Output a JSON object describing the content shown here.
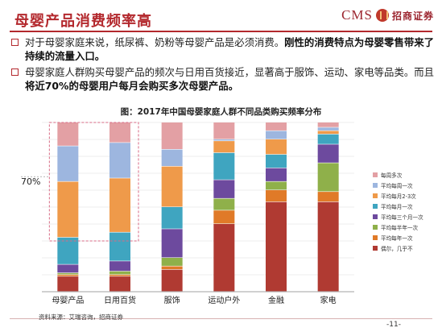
{
  "header": {
    "title": "母婴产品消费频率高",
    "logo_cms": "CMS",
    "logo_cn": "招商证券"
  },
  "bullets": [
    {
      "text": "对于母婴家庭来说，纸尿裤、奶粉等母婴产品是必须消费。",
      "bold": "刚性的消费特点为母婴零售带来了持续的流量入口。"
    },
    {
      "text": "母婴家庭人群购买母婴产品的频次与日用百货接近，显著高于服饰、运动、家电等品类。而且",
      "bold": "将近70%的母婴用户每月会购买多次母婴产品。"
    }
  ],
  "chart_data": {
    "type": "bar",
    "stacked": true,
    "title": "图：2017年中国母婴家庭人群不同品类购买频率分布",
    "categories": [
      "母婴产品",
      "日用百货",
      "服饰",
      "运动户外",
      "金融",
      "家电"
    ],
    "annotation": "70%",
    "ylim": [
      0,
      100
    ],
    "legend_position": "right",
    "series": [
      {
        "name": "偶尔，几乎不",
        "color": "#b03a32",
        "values": [
          9,
          9,
          13,
          40,
          53,
          53
        ]
      },
      {
        "name": "平均每年一次",
        "color": "#e07a28",
        "values": [
          1,
          1,
          2,
          8,
          7,
          6
        ]
      },
      {
        "name": "平均每半年一次",
        "color": "#8fb04a",
        "values": [
          1,
          2,
          5,
          7,
          5,
          17
        ]
      },
      {
        "name": "平均每三个月一次",
        "color": "#6d4a9e",
        "values": [
          5,
          6,
          17,
          11,
          8,
          11
        ]
      },
      {
        "name": "平均每月一次",
        "color": "#3fa5c0",
        "values": [
          16,
          17,
          13,
          16,
          8,
          6
        ]
      },
      {
        "name": "平均每月2-3次",
        "color": "#ef9a4a",
        "values": [
          33,
          32,
          24,
          7,
          9,
          2
        ]
      },
      {
        "name": "平均每周一次",
        "color": "#9db6df",
        "values": [
          21,
          21,
          10,
          1,
          5,
          2
        ]
      },
      {
        "name": "每周多次",
        "color": "#e3a0a4",
        "values": [
          14,
          12,
          16,
          10,
          5,
          3
        ]
      }
    ]
  },
  "footer": {
    "source": "资料来源：艾瑞咨询，招商证券",
    "page": "-11-"
  }
}
